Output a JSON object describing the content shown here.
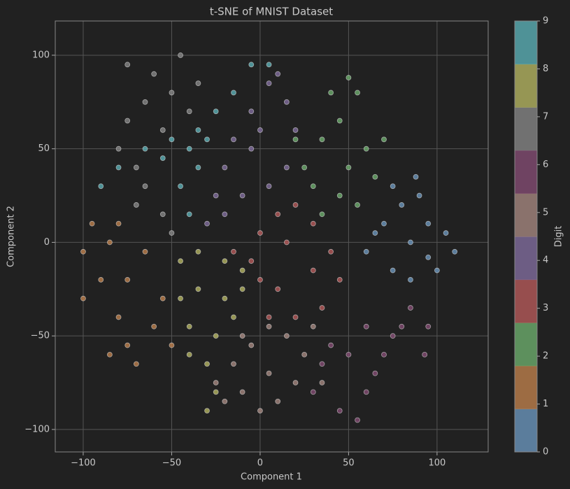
{
  "chart_data": {
    "type": "scatter",
    "title": "t-SNE of MNIST Dataset",
    "x_label": "Component 1",
    "y_label": "Component 2",
    "xlim": [
      -115.8,
      128.9
    ],
    "ylim": [
      -112,
      118.3
    ],
    "xticks": [
      {
        "value": -100,
        "label": "−100"
      },
      {
        "value": -50,
        "label": "−50"
      },
      0,
      50,
      100
    ],
    "yticks": [
      {
        "value": -100,
        "label": "−100"
      },
      {
        "value": -50,
        "label": "−50"
      },
      0,
      50,
      100
    ],
    "grid": true,
    "colorbar": {
      "label": "Digit",
      "lim": [
        0,
        9
      ],
      "ticks": [
        0,
        1,
        2,
        3,
        4,
        5,
        6,
        7,
        8,
        9
      ],
      "colors": [
        "#6f9cc6",
        "#c7854f",
        "#72b572",
        "#bf5e5e",
        "#8771a6",
        "#ad8d86",
        "#8a4f78",
        "#8c8c8c",
        "#bdbd66",
        "#5fb8bf"
      ]
    },
    "x": [
      60,
      70,
      80,
      90,
      95,
      105,
      110,
      100,
      85,
      75,
      65,
      85,
      95,
      75,
      88,
      -100,
      -95,
      -85,
      -90,
      -100,
      -80,
      -75,
      -70,
      -85,
      -60,
      -55,
      -75,
      -65,
      -50,
      -80,
      25,
      35,
      45,
      40,
      55,
      30,
      50,
      60,
      65,
      45,
      35,
      55,
      20,
      70,
      50,
      -15,
      0,
      10,
      20,
      30,
      40,
      45,
      35,
      20,
      10,
      0,
      -5,
      15,
      30,
      5,
      -30,
      -25,
      -20,
      -15,
      -5,
      5,
      15,
      20,
      15,
      5,
      -10,
      -5,
      0,
      10,
      -20,
      -25,
      -15,
      -5,
      5,
      15,
      25,
      20,
      10,
      0,
      -10,
      -20,
      30,
      5,
      -10,
      35,
      30,
      35,
      40,
      45,
      55,
      60,
      65,
      70,
      75,
      80,
      85,
      60,
      50,
      95,
      93,
      -80,
      -75,
      -65,
      -60,
      -45,
      -50,
      -55,
      -40,
      -70,
      -65,
      -55,
      -50,
      -70,
      -75,
      -35,
      -45,
      -35,
      -20,
      -10,
      -15,
      -25,
      -40,
      -45,
      -35,
      -30,
      -40,
      -20,
      -25,
      -30,
      -10,
      -90,
      -80,
      -65,
      -50,
      -40,
      -35,
      -25,
      -15,
      -5,
      -45,
      -40,
      -35,
      -30,
      5,
      -55
    ],
    "y": [
      -5,
      10,
      20,
      25,
      10,
      5,
      -5,
      -15,
      -20,
      -15,
      5,
      0,
      -8,
      30,
      35,
      -5,
      10,
      0,
      -20,
      -30,
      -40,
      -55,
      -65,
      -60,
      -45,
      -30,
      -20,
      -5,
      -55,
      10,
      40,
      55,
      65,
      80,
      80,
      30,
      40,
      50,
      35,
      25,
      15,
      20,
      55,
      55,
      88,
      -5,
      5,
      15,
      20,
      10,
      -5,
      -20,
      -35,
      -40,
      -25,
      -20,
      -10,
      0,
      -15,
      -40,
      10,
      25,
      40,
      55,
      70,
      85,
      75,
      60,
      40,
      30,
      25,
      50,
      60,
      90,
      15,
      -75,
      -65,
      -55,
      -45,
      -50,
      -60,
      -75,
      -85,
      -90,
      -80,
      -85,
      -45,
      -70,
      -50,
      -75,
      -80,
      -65,
      -55,
      -90,
      -95,
      -80,
      -70,
      -60,
      -50,
      -45,
      -35,
      -45,
      -60,
      -45,
      -60,
      50,
      65,
      75,
      90,
      100,
      80,
      60,
      70,
      40,
      30,
      15,
      5,
      20,
      95,
      85,
      -10,
      -5,
      -10,
      -25,
      -40,
      -50,
      -45,
      -30,
      -25,
      -65,
      -60,
      -30,
      -80,
      -90,
      -15,
      30,
      40,
      50,
      55,
      50,
      60,
      70,
      80,
      95,
      30,
      15,
      40,
      55,
      95,
      45
    ],
    "c": [
      0,
      0,
      0,
      0,
      0,
      0,
      0,
      0,
      0,
      0,
      0,
      0,
      0,
      0,
      0,
      1,
      1,
      1,
      1,
      1,
      1,
      1,
      1,
      1,
      1,
      1,
      1,
      1,
      1,
      1,
      2,
      2,
      2,
      2,
      2,
      2,
      2,
      2,
      2,
      2,
      2,
      2,
      2,
      2,
      2,
      3,
      3,
      3,
      3,
      3,
      3,
      3,
      3,
      3,
      3,
      3,
      3,
      3,
      3,
      3,
      4,
      4,
      4,
      4,
      4,
      4,
      4,
      4,
      4,
      4,
      4,
      4,
      4,
      4,
      4,
      5,
      5,
      5,
      5,
      5,
      5,
      5,
      5,
      5,
      5,
      5,
      5,
      5,
      5,
      5,
      6,
      6,
      6,
      6,
      6,
      6,
      6,
      6,
      6,
      6,
      6,
      6,
      6,
      6,
      6,
      7,
      7,
      7,
      7,
      7,
      7,
      7,
      7,
      7,
      7,
      7,
      7,
      7,
      7,
      7,
      8,
      8,
      8,
      8,
      8,
      8,
      8,
      8,
      8,
      8,
      8,
      8,
      8,
      8,
      8,
      9,
      9,
      9,
      9,
      9,
      9,
      9,
      9,
      9,
      9,
      9,
      9,
      9,
      9,
      9
    ]
  }
}
